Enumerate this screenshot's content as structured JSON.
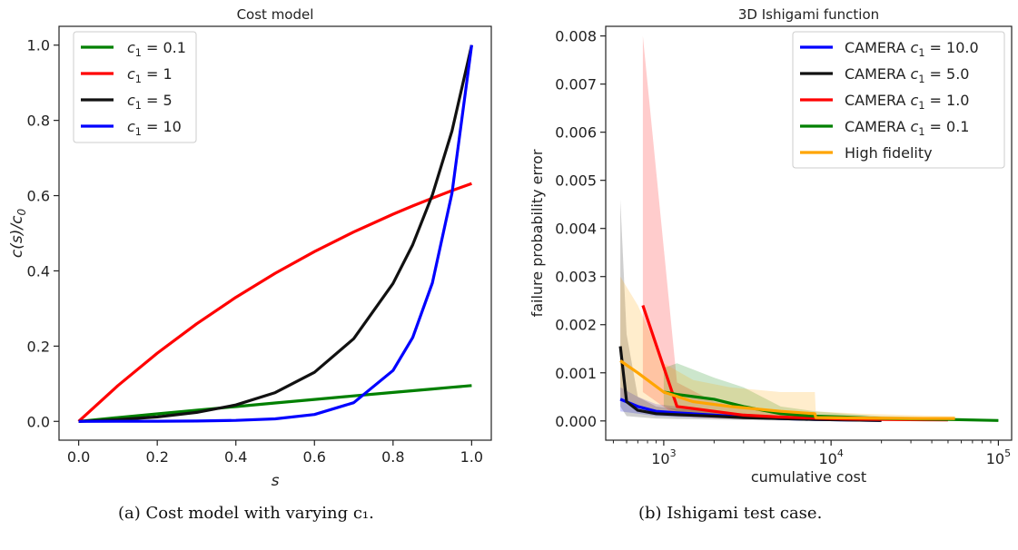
{
  "captions": {
    "a": "(a) Cost model with varying c₁.",
    "b": "(b) Ishigami test case."
  },
  "chart_data": [
    {
      "type": "line",
      "title": "Cost model",
      "xlabel": "s",
      "ylabel": "c(s)/c₀",
      "xlim": [
        -0.05,
        1.05
      ],
      "ylim": [
        -0.05,
        1.05
      ],
      "xticks": [
        0.0,
        0.2,
        0.4,
        0.6,
        0.8,
        1.0
      ],
      "xtick_labels": [
        "0.0",
        "0.2",
        "0.4",
        "0.6",
        "0.8",
        "1.0"
      ],
      "yticks": [
        0.0,
        0.2,
        0.4,
        0.6,
        0.8,
        1.0
      ],
      "ytick_labels": [
        "0.0",
        "0.2",
        "0.4",
        "0.6",
        "0.8",
        "1.0"
      ],
      "legend_position": "top-left",
      "grid": false,
      "x": [
        0.0,
        0.1,
        0.2,
        0.3,
        0.4,
        0.5,
        0.6,
        0.7,
        0.8,
        0.85,
        0.9,
        0.95,
        1.0
      ],
      "series": [
        {
          "name": "c₁ = 0.1",
          "color": "#008000",
          "values": [
            0.0,
            0.01,
            0.02,
            0.0296,
            0.0392,
            0.0488,
            0.0582,
            0.0676,
            0.0769,
            0.0815,
            0.086,
            0.0906,
            0.0952
          ]
        },
        {
          "name": "c₁ = 1",
          "color": "#ff0000",
          "values": [
            0.0,
            0.0952,
            0.1813,
            0.2592,
            0.3297,
            0.3935,
            0.4512,
            0.5034,
            0.5507,
            0.5726,
            0.5934,
            0.6133,
            0.6321
          ]
        },
        {
          "name": "c₁ = 5",
          "color": "#111111",
          "values": [
            0.0,
            0.0044,
            0.0117,
            0.0237,
            0.0436,
            0.0764,
            0.1305,
            0.2196,
            0.3665,
            0.4695,
            0.6018,
            0.7717,
            1.0
          ]
        },
        {
          "name": "c₁ = 10",
          "color": "#0000ff",
          "values": [
            0.0,
            0.0001,
            0.0003,
            0.0009,
            0.0025,
            0.0067,
            0.0183,
            0.0497,
            0.1353,
            0.2231,
            0.3679,
            0.6065,
            1.0
          ]
        }
      ]
    },
    {
      "type": "line",
      "title": "3D Ishigami function",
      "xlabel": "cumulative cost",
      "ylabel": "failure probability error",
      "xscale": "log",
      "xlim": [
        450,
        120000
      ],
      "ylim": [
        -0.0004,
        0.0082
      ],
      "xticks": [
        1000,
        10000,
        100000
      ],
      "xtick_labels": [
        {
          "base": "10",
          "exp": "3"
        },
        {
          "base": "10",
          "exp": "4"
        },
        {
          "base": "10",
          "exp": "5"
        }
      ],
      "yticks": [
        0.0,
        0.001,
        0.002,
        0.003,
        0.004,
        0.005,
        0.006,
        0.007,
        0.008
      ],
      "ytick_labels": [
        "0.000",
        "0.001",
        "0.002",
        "0.003",
        "0.004",
        "0.005",
        "0.006",
        "0.007",
        "0.008"
      ],
      "legend_position": "top-right",
      "grid": false,
      "series": [
        {
          "name": "CAMERA c₁ = 10.0",
          "color": "#0000ff",
          "x": [
            550,
            700,
            900,
            1200,
            2000,
            3000,
            5000,
            8000,
            12000,
            20000
          ],
          "values": [
            0.00045,
            0.0003,
            0.0002,
            0.00017,
            0.00012,
            8e-05,
            5e-05,
            3e-05,
            2e-05,
            1e-05
          ],
          "upper": [
            0.0007,
            0.0005,
            0.00035,
            0.0003,
            0.00022,
            0.00015,
            0.0001,
            7e-05,
            5e-05,
            3e-05
          ],
          "lower": [
            0.0002,
            0.00015,
            0.0001,
            8e-05,
            6e-05,
            4e-05,
            2e-05,
            1e-05,
            0.0,
            0.0
          ]
        },
        {
          "name": "CAMERA c₁ = 5.0",
          "color": "#111111",
          "x": [
            550,
            600,
            700,
            900,
            1200,
            2000,
            3000,
            5000,
            8000,
            12000,
            20000
          ],
          "values": [
            0.00155,
            0.0004,
            0.00022,
            0.00015,
            0.00013,
            0.0001,
            7e-05,
            5e-05,
            3e-05,
            2e-05,
            1e-05
          ],
          "upper": [
            0.0046,
            0.0018,
            0.0005,
            0.0003,
            0.00025,
            0.0002,
            0.00015,
            0.0001,
            7e-05,
            5e-05,
            3e-05
          ],
          "lower": [
            0.0003,
            0.0001,
            8e-05,
            5e-05,
            4e-05,
            3e-05,
            2e-05,
            1e-05,
            0.0,
            0.0,
            0.0
          ]
        },
        {
          "name": "CAMERA c₁ = 1.0",
          "color": "#ff0000",
          "x": [
            750,
            1200,
            2000,
            3000,
            5000,
            8000,
            12000,
            20000,
            50000
          ],
          "values": [
            0.0024,
            0.0003,
            0.0002,
            0.00012,
            8e-05,
            6e-05,
            4e-05,
            3e-05,
            2e-05
          ],
          "upper": [
            0.008,
            0.0008,
            0.0004,
            0.0003,
            0.00018,
            0.00012,
            0.0001,
            8e-05,
            6e-05
          ],
          "lower": [
            0.0006,
            0.0001,
            6e-05,
            4e-05,
            3e-05,
            2e-05,
            1e-05,
            0.0,
            0.0
          ]
        },
        {
          "name": "CAMERA c₁ = 0.1",
          "color": "#008000",
          "x": [
            1000,
            1200,
            2000,
            3000,
            5000,
            8000,
            12000,
            20000,
            50000,
            100000
          ],
          "values": [
            0.0006,
            0.00055,
            0.00045,
            0.0003,
            0.00015,
            0.0001,
            8e-05,
            5e-05,
            3e-05,
            1e-05
          ],
          "upper": [
            0.0011,
            0.0012,
            0.0009,
            0.0007,
            0.0003,
            0.0002,
            0.00015,
            0.0001,
            7e-05,
            3e-05
          ],
          "lower": [
            0.0003,
            0.0002,
            0.0001,
            8e-05,
            5e-05,
            3e-05,
            2e-05,
            1e-05,
            0.0,
            0.0
          ]
        },
        {
          "name": "High fidelity",
          "color": "#ffa500",
          "x": [
            550,
            700,
            1000,
            1500,
            2500,
            5000,
            8000,
            8100,
            15000,
            30000,
            55000
          ],
          "values": [
            0.00125,
            0.001,
            0.0006,
            0.0004,
            0.0003,
            0.0002,
            0.00015,
            7e-05,
            6e-05,
            5e-05,
            5e-05
          ],
          "upper": [
            0.003,
            0.0024,
            0.0012,
            0.00085,
            0.0007,
            0.0006,
            0.0006,
            0.0002,
            0.00015,
            0.00012,
            0.0001
          ],
          "lower": [
            0.0005,
            0.0003,
            0.0002,
            0.00012,
            0.0001,
            5e-05,
            3e-05,
            2e-05,
            1e-05,
            0.0,
            0.0
          ]
        }
      ]
    }
  ]
}
